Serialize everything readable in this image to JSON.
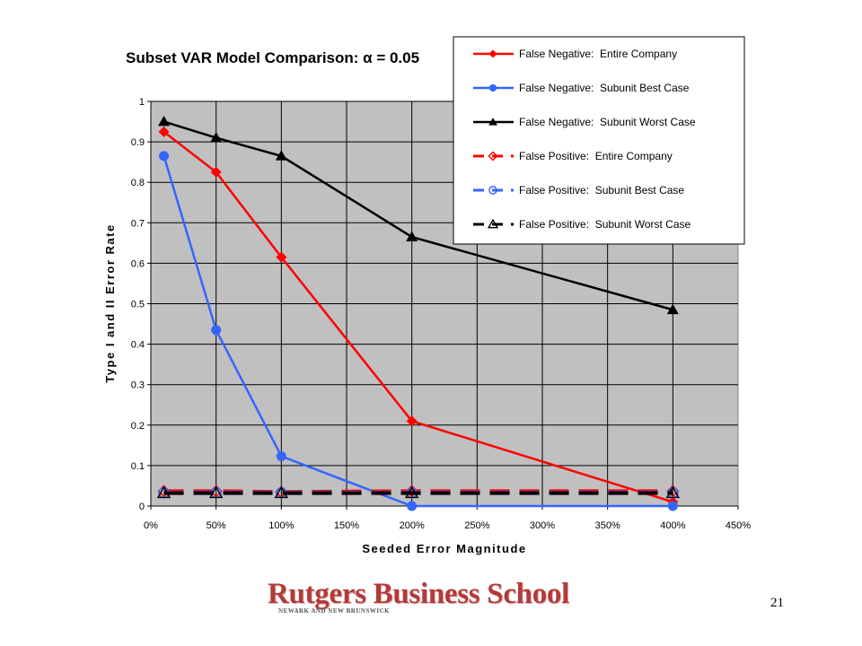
{
  "chart_data": {
    "type": "line",
    "title": "Subset VAR Model Comparison: α = 0.05",
    "xlabel": "Seeded Error Magnitude",
    "ylabel": "Type I and II Error Rate",
    "xlim": [
      0,
      450
    ],
    "ylim": [
      0,
      1
    ],
    "x_ticks": [
      "0%",
      "50%",
      "100%",
      "150%",
      "200%",
      "250%",
      "300%",
      "350%",
      "400%",
      "450%"
    ],
    "y_ticks": [
      "0",
      "0.1",
      "0.2",
      "0.3",
      "0.4",
      "0.5",
      "0.6",
      "0.7",
      "0.8",
      "0.9",
      "1"
    ],
    "grid": true,
    "plot_background": "#c0c0c0",
    "legend_position": "top-right",
    "x": [
      10,
      50,
      100,
      200,
      400
    ],
    "series": [
      {
        "name": "False Negative:  Entire Company",
        "values": [
          0.925,
          0.825,
          0.615,
          0.21,
          0.01
        ],
        "color": "#ff0000",
        "dash": "solid",
        "marker": "diamond",
        "filled": true
      },
      {
        "name": "False Negative:  Subunit Best Case",
        "values": [
          0.865,
          0.435,
          0.123,
          0.0,
          0.0
        ],
        "color": "#3366ff",
        "dash": "solid",
        "marker": "circle",
        "filled": true
      },
      {
        "name": "False Negative:  Subunit Worst Case",
        "values": [
          0.95,
          0.91,
          0.865,
          0.665,
          0.485
        ],
        "color": "#000000",
        "dash": "solid",
        "marker": "triangle",
        "filled": true
      },
      {
        "name": "False Positive:  Entire Company",
        "values": [
          0.037,
          0.037,
          0.035,
          0.037,
          0.037
        ],
        "color": "#ff0000",
        "dash": "dashed",
        "marker": "diamond",
        "filled": false
      },
      {
        "name": "False Positive:  Subunit Best Case",
        "values": [
          0.033,
          0.033,
          0.033,
          0.033,
          0.033
        ],
        "color": "#3366ff",
        "dash": "dashed",
        "marker": "circle",
        "filled": false
      },
      {
        "name": "False Positive:  Subunit Worst Case",
        "values": [
          0.032,
          0.032,
          0.032,
          0.032,
          0.032
        ],
        "color": "#000000",
        "dash": "dashed",
        "marker": "triangle",
        "filled": false
      }
    ]
  },
  "footer": {
    "logo_title": "Rutgers Business School",
    "logo_subtitle": "NEWARK AND NEW BRUNSWICK",
    "slide_number": "21"
  }
}
